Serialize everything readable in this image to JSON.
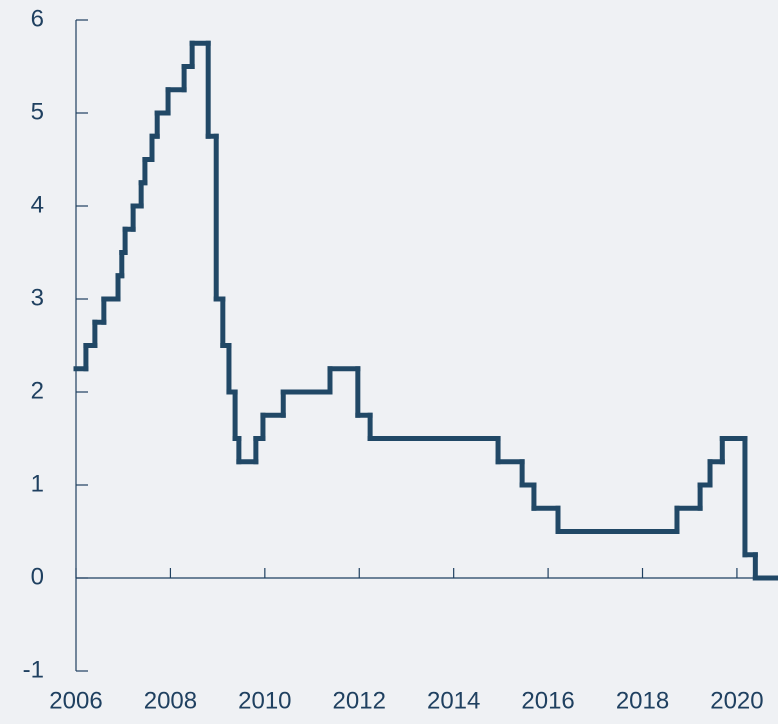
{
  "chart_data": {
    "type": "step",
    "x": [
      2006.0,
      2006.21,
      2006.4,
      2006.59,
      2006.89,
      2006.97,
      2007.04,
      2007.21,
      2007.38,
      2007.46,
      2007.61,
      2007.72,
      2007.95,
      2008.29,
      2008.46,
      2008.8,
      2008.97,
      2009.11,
      2009.24,
      2009.37,
      2009.45,
      2009.81,
      2009.96,
      2010.39,
      2011.38,
      2011.97,
      2012.23,
      2014.94,
      2015.45,
      2015.7,
      2016.21,
      2018.73,
      2019.22,
      2019.43,
      2019.69,
      2020.17,
      2020.39
    ],
    "values": [
      2.25,
      2.5,
      2.75,
      3.0,
      3.25,
      3.5,
      3.75,
      4.0,
      4.25,
      4.5,
      4.75,
      5.0,
      5.25,
      5.5,
      5.75,
      4.75,
      3.0,
      2.5,
      2.0,
      1.5,
      1.25,
      1.5,
      1.75,
      2.0,
      2.25,
      1.75,
      1.5,
      1.25,
      1.0,
      0.75,
      0.5,
      0.75,
      1.0,
      1.25,
      1.5,
      0.25,
      0
    ],
    "color": "#214866",
    "xlim": [
      2006,
      2020.87
    ],
    "xticks": [
      2006,
      2008,
      2010,
      2012,
      2014,
      2016,
      2018,
      2020
    ],
    "ylim": [
      -1,
      6
    ],
    "yticks": [
      -1,
      0,
      1,
      2,
      3,
      4,
      5,
      6
    ]
  }
}
